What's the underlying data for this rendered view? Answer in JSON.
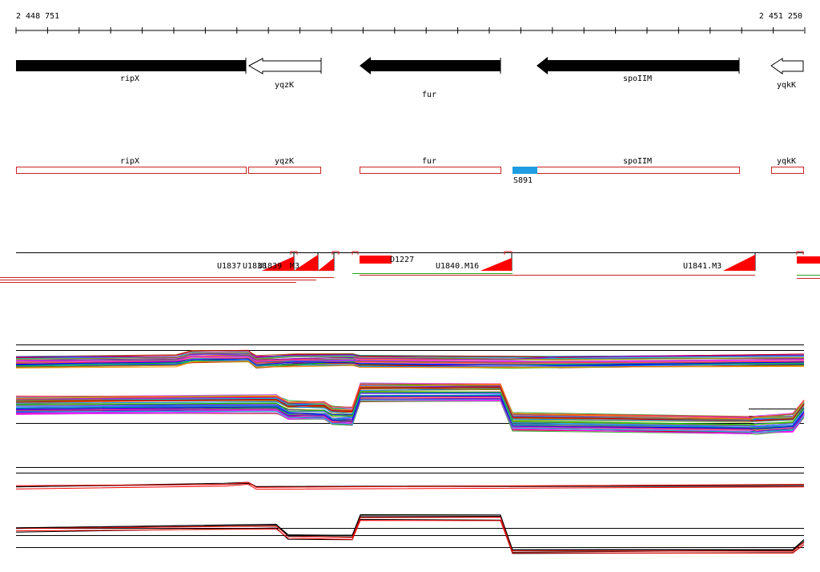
{
  "coordinates": {
    "start_label": "2 448 751",
    "end_label": "2 451 250"
  },
  "genes": [
    {
      "name": "ripX",
      "style": "filled",
      "strand": "right"
    },
    {
      "name": "yqzK",
      "style": "outline",
      "strand": "left"
    },
    {
      "name": "fur",
      "style": "filled",
      "strand": "left"
    },
    {
      "name": "spoIIM",
      "style": "filled",
      "strand": "left"
    },
    {
      "name": "yqkK",
      "style": "outline",
      "strand": "left"
    }
  ],
  "annotations": [
    {
      "name": "ripX"
    },
    {
      "name": "yqzK"
    },
    {
      "name": "fur"
    },
    {
      "name": "spoIIM"
    },
    {
      "name": "yqkK"
    }
  ],
  "site": {
    "label": "S891",
    "color": "#1e9ee0"
  },
  "transcripts": {
    "labels": [
      "U1837",
      "U1838",
      "U1839",
      "M3",
      "D1227",
      "U1840.M16",
      "U1841.M3"
    ],
    "color": "#ff0000"
  },
  "colors": {
    "annotation_outline": "#cc2222",
    "expression_accent": "#ff0000"
  }
}
